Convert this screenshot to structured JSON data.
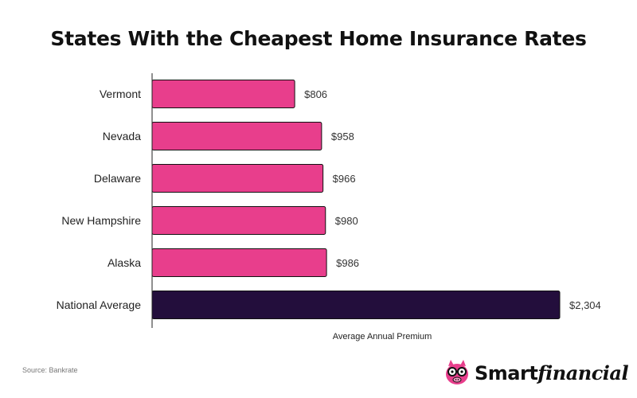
{
  "title": "States With the Cheapest Home Insurance Rates",
  "source": "Source: Bankrate",
  "brand": {
    "name_part1": "Smart",
    "name_part2": "financial",
    "logo_icon": "pig-with-glasses-icon"
  },
  "colors": {
    "state_bar": "#e83e8c",
    "average_bar": "#230e3c",
    "bar_stroke": "#111111"
  },
  "chart_data": {
    "type": "bar",
    "orientation": "horizontal",
    "title": "States With the Cheapest Home Insurance Rates",
    "xlabel": "Average Annual Premium",
    "ylabel": "",
    "categories": [
      "Vermont",
      "Nevada",
      "Delaware",
      "New Hampshire",
      "Alaska",
      "National Average"
    ],
    "values": [
      806,
      958,
      966,
      980,
      986,
      2304
    ],
    "value_labels": [
      "$806",
      "$958",
      "$966",
      "$980",
      "$986",
      "$2,304"
    ],
    "xlim": [
      0,
      2304
    ],
    "grid": false
  }
}
